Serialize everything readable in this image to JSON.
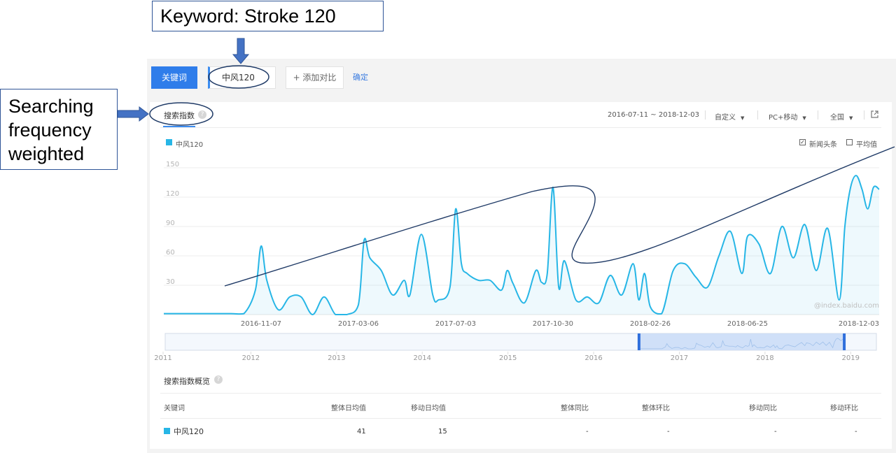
{
  "annotations": {
    "keyword_callout": "Keyword: Stroke 120",
    "search_callout": [
      "Searching",
      "frequency",
      "weighted"
    ]
  },
  "toolbar": {
    "keyword_tab": "关键词",
    "keyword_value": "中风120",
    "add_compare": "+ 添加对比",
    "confirm": "确定"
  },
  "header": {
    "title": "搜索指数",
    "help": "?",
    "date_range": "2016-07-11 ~ 2018-12-03",
    "custom": "自定义",
    "device": "PC+移动",
    "region": "全国",
    "export_icon": "external-link-icon"
  },
  "chart_legend": {
    "series": "中风120",
    "news_label": "新闻头条",
    "news_checked": true,
    "avg_label": "平均值",
    "avg_checked": false,
    "watermark": "@index.baidu.com"
  },
  "colors": {
    "accent": "#2f7dea",
    "series": "#27b6e6",
    "annotation": "#2f5597"
  },
  "chart_data": {
    "type": "area",
    "series": [
      {
        "name": "中风120",
        "x": [
          "2016-07-11",
          "2016-08-01",
          "2016-09-01",
          "2016-10-01",
          "2016-10-17",
          "2016-10-31",
          "2016-11-07",
          "2016-11-14",
          "2016-11-28",
          "2016-12-12",
          "2016-12-26",
          "2017-01-09",
          "2017-01-23",
          "2017-02-06",
          "2017-02-20",
          "2017-03-06",
          "2017-03-13",
          "2017-03-20",
          "2017-04-03",
          "2017-04-17",
          "2017-05-01",
          "2017-05-08",
          "2017-05-22",
          "2017-06-05",
          "2017-06-12",
          "2017-06-26",
          "2017-07-03",
          "2017-07-10",
          "2017-07-17",
          "2017-07-31",
          "2017-08-14",
          "2017-08-28",
          "2017-09-04",
          "2017-09-11",
          "2017-09-25",
          "2017-10-09",
          "2017-10-16",
          "2017-10-23",
          "2017-10-30",
          "2017-11-06",
          "2017-11-13",
          "2017-11-27",
          "2017-12-11",
          "2017-12-25",
          "2018-01-08",
          "2018-01-22",
          "2018-02-05",
          "2018-02-12",
          "2018-02-19",
          "2018-02-26",
          "2018-03-12",
          "2018-03-26",
          "2018-04-09",
          "2018-04-23",
          "2018-05-07",
          "2018-05-21",
          "2018-06-04",
          "2018-06-18",
          "2018-06-25",
          "2018-07-09",
          "2018-07-23",
          "2018-08-06",
          "2018-08-20",
          "2018-09-03",
          "2018-09-17",
          "2018-10-01",
          "2018-10-15",
          "2018-10-22",
          "2018-10-29",
          "2018-11-05",
          "2018-11-12",
          "2018-11-19",
          "2018-11-26",
          "2018-12-03"
        ],
        "values": [
          1,
          1,
          1,
          1,
          1,
          25,
          70,
          35,
          5,
          18,
          18,
          0,
          18,
          0,
          0,
          10,
          76,
          58,
          45,
          20,
          35,
          20,
          82,
          20,
          15,
          28,
          108,
          52,
          42,
          35,
          35,
          25,
          45,
          32,
          12,
          45,
          33,
          42,
          130,
          28,
          55,
          15,
          18,
          12,
          40,
          20,
          52,
          15,
          42,
          8,
          1,
          45,
          52,
          38,
          28,
          60,
          85,
          42,
          80,
          72,
          42,
          90,
          58,
          92,
          45,
          88,
          15,
          90,
          130,
          142,
          128,
          108,
          130,
          128
        ]
      }
    ],
    "x_tick_labels": [
      "2016-11-07",
      "2017-03-06",
      "2017-07-03",
      "2017-10-30",
      "2018-02-26",
      "2018-06-25",
      "2018-12-03"
    ],
    "y_ticks": [
      30,
      60,
      90,
      120,
      150
    ],
    "ylim": [
      0,
      150
    ],
    "grid": true,
    "navigator_years": [
      "2011",
      "2012",
      "2013",
      "2014",
      "2015",
      "2016",
      "2017",
      "2018",
      "2019"
    ],
    "navigator_selection": [
      "2016-07-11",
      "2018-12-03"
    ]
  },
  "overview": {
    "title": "搜索指数概览",
    "help": "?",
    "columns": [
      "关键词",
      "整体日均值",
      "移动日均值",
      "整体同比",
      "整体环比",
      "移动同比",
      "移动环比"
    ],
    "rows": [
      {
        "keyword": "中风120",
        "overall_avg": "41",
        "mobile_avg": "15",
        "overall_yoy": "-",
        "overall_mom": "-",
        "mobile_yoy": "-",
        "mobile_mom": "-"
      }
    ]
  }
}
